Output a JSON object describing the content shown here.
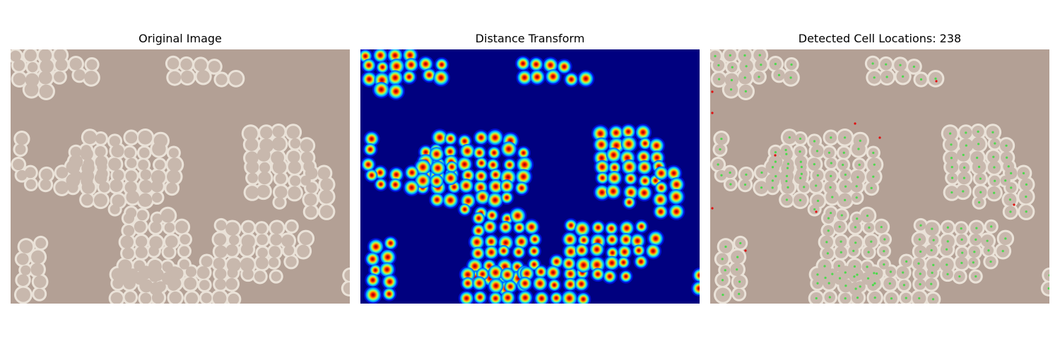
{
  "panels": [
    {
      "title": "Original Image",
      "image": "phase-contrast micrograph of cell colonies"
    },
    {
      "title": "Distance Transform",
      "image": "jet-colormap distance transform of cell colonies"
    },
    {
      "title": "Detected Cell Locations: 238",
      "image": "micrograph with detected cell center markers"
    }
  ],
  "colors": {
    "background_tan": "#b3a095",
    "cell_wall": "#eae2d8",
    "cell_fill": "#c8b8ad",
    "dt_background": "#00007f",
    "marker_green": "#4cd94c",
    "marker_red": "#e01010"
  }
}
